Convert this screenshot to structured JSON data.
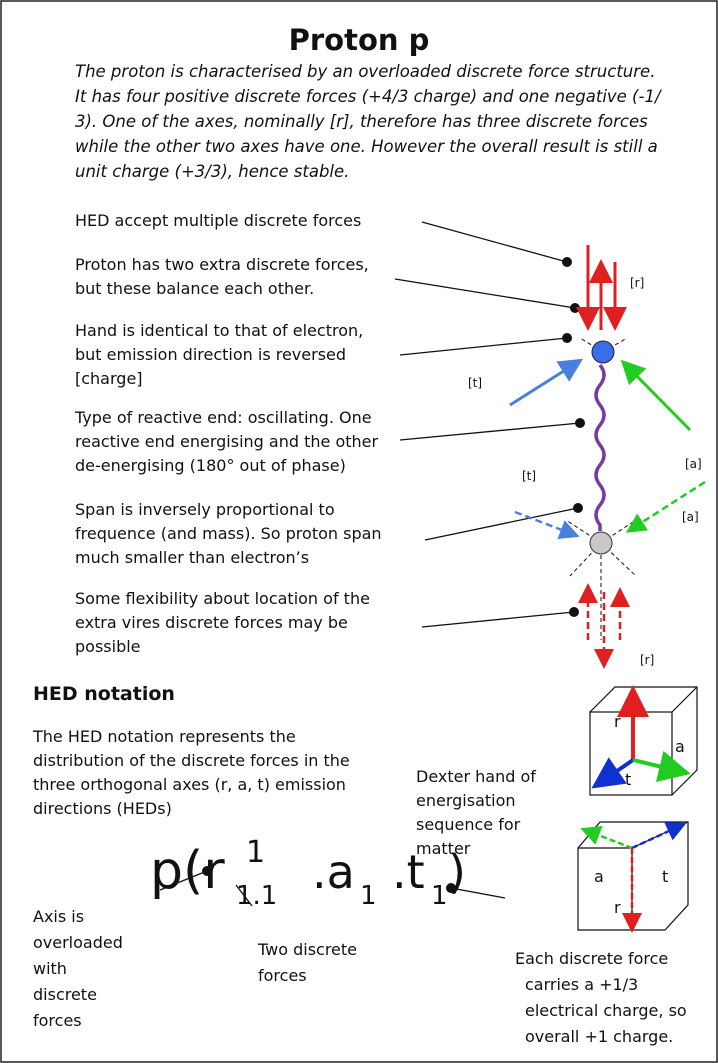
{
  "title": "Proton p",
  "intro": [
    "The proton is characterised by an overloaded discrete force structure.",
    "It has four positive discrete forces (+4/3 charge) and one negative (-1/",
    "3). One of the axes, nominally [r], therefore has three discrete forces",
    "while the other two axes have one.   However the overall result is still a",
    "unit charge (+3/3), hence stable."
  ],
  "annotations": [
    {
      "lines": [
        "HED accept multiple discrete forces"
      ]
    },
    {
      "lines": [
        "Proton has two extra discrete forces,",
        "but these balance each other."
      ]
    },
    {
      "lines": [
        "Hand is identical to that of electron,",
        "but emission direction is reversed",
        "[charge]"
      ]
    },
    {
      "lines": [
        "Type of reactive end: oscillating.  One",
        "reactive end energising and the other",
        "de-energising (180° out of phase)"
      ]
    },
    {
      "lines": [
        "Span is inversely proportional to",
        "frequence (and mass). So proton span",
        "much smaller than electron’s"
      ]
    },
    {
      "lines": [
        "Some flexibility about location of the",
        "extra vires discrete forces may be",
        "possible"
      ]
    }
  ],
  "diagram_labels": [
    "[r]",
    "[t]",
    "[a]",
    "[t]",
    "[a]",
    "[r]"
  ],
  "notation_heading": "HED notation",
  "notation_text": [
    "The HED notation represents the",
    "distribution of the discrete forces in the",
    "three orthogonal axes (r, a, t) emission",
    "directions  (HEDs)"
  ],
  "dexter": [
    "Dexter hand of",
    "energisation",
    "sequence for",
    "matter"
  ],
  "cube_labels": [
    "r",
    "a",
    "t",
    "a",
    "t",
    "r"
  ],
  "formula": [
    "p(r",
    "1",
    "1.1",
    ".a",
    "1",
    ".t",
    "1",
    ")"
  ],
  "notes": [
    {
      "lines": [
        "Axis is",
        "overloaded",
        "with",
        "discrete",
        "forces"
      ]
    },
    {
      "lines": [
        "Two discrete",
        "forces"
      ]
    },
    {
      "lines": [
        "Each discrete force",
        "carries a +1/3",
        "electrical charge, so",
        "overall +1 charge."
      ]
    }
  ]
}
